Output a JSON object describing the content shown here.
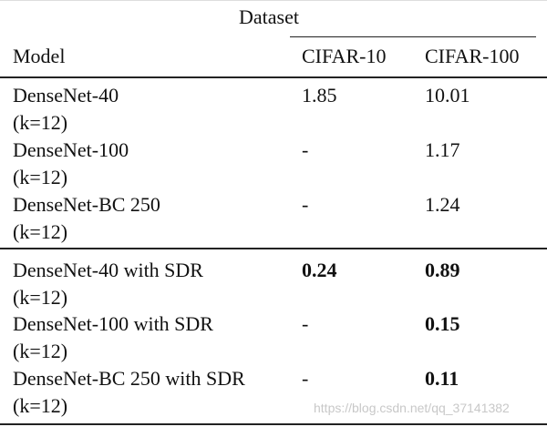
{
  "table": {
    "header": {
      "group_label": "Dataset",
      "model_label": "Model",
      "col1": "CIFAR-10",
      "col2": "CIFAR-100"
    },
    "rows": [
      {
        "model": "DenseNet-40",
        "params": "(k=12)",
        "cifar10": "1.85",
        "cifar100": "10.01",
        "bold": false
      },
      {
        "model": "DenseNet-100",
        "params": "(k=12)",
        "cifar10": "-",
        "cifar100": "1.17",
        "bold": false
      },
      {
        "model": "DenseNet-BC 250",
        "params": "(k=12)",
        "cifar10": "-",
        "cifar100": "1.24",
        "bold": false
      },
      {
        "model": "DenseNet-40 with SDR",
        "params": "(k=12)",
        "cifar10": "0.24",
        "cifar100": "0.89",
        "bold": true
      },
      {
        "model": "DenseNet-100 with SDR",
        "params": "(k=12)",
        "cifar10": "-",
        "cifar100": "0.15",
        "bold": true
      },
      {
        "model": "DenseNet-BC 250 with SDR",
        "params": "(k=12)",
        "cifar10": "-",
        "cifar100": "0.11",
        "bold": true
      }
    ]
  },
  "watermark": "https://blog.csdn.net/qq_37141382"
}
